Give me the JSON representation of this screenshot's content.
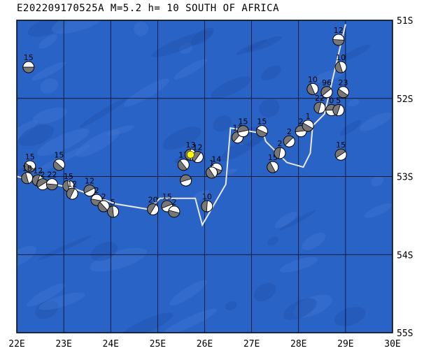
{
  "title": "E202209170525A M=5.2 h= 10 SOUTH OF AFRICA",
  "map": {
    "lon_range": [
      22,
      30
    ],
    "lat_range": [
      -55,
      -51
    ],
    "lon_ticks": [
      "22E",
      "23E",
      "24E",
      "25E",
      "26E",
      "27E",
      "28E",
      "29E",
      "30E"
    ],
    "lat_ticks": [
      "51S",
      "52S",
      "53S",
      "54S",
      "55S"
    ],
    "colors": {
      "ocean": "#2a63c6",
      "ocean_light": "#3e76d2",
      "ocean_dark": "#1f52ae",
      "grid": "#000000",
      "plate_boundary": "#e8e8e8",
      "highlight": "#ffff00"
    },
    "plate_boundary": [
      [
        22.0,
        -53.0
      ],
      [
        23.2,
        -53.15
      ],
      [
        24.1,
        -53.35
      ],
      [
        24.8,
        -53.42
      ],
      [
        25.05,
        -53.28
      ],
      [
        25.8,
        -53.28
      ],
      [
        25.95,
        -53.62
      ],
      [
        26.45,
        -53.1
      ],
      [
        26.55,
        -52.38
      ],
      [
        27.25,
        -52.45
      ],
      [
        27.3,
        -52.55
      ],
      [
        27.75,
        -52.82
      ],
      [
        28.1,
        -52.88
      ],
      [
        28.25,
        -52.7
      ],
      [
        28.3,
        -52.35
      ],
      [
        28.55,
        -52.2
      ],
      [
        29.0,
        -51.05
      ]
    ],
    "epicenter": {
      "lon": 25.7,
      "lat": -52.72
    },
    "events": [
      {
        "lon": 22.25,
        "lat": -51.6,
        "label": "15"
      },
      {
        "lon": 22.28,
        "lat": -52.87,
        "label": "15"
      },
      {
        "lon": 22.22,
        "lat": -53.02,
        "label": "18"
      },
      {
        "lon": 22.45,
        "lat": -53.05,
        "label": "12"
      },
      {
        "lon": 22.55,
        "lat": -53.1,
        "label": "2"
      },
      {
        "lon": 22.75,
        "lat": -53.1,
        "label": "22"
      },
      {
        "lon": 22.9,
        "lat": -52.85,
        "label": "15"
      },
      {
        "lon": 23.1,
        "lat": -53.12,
        "label": "15"
      },
      {
        "lon": 23.18,
        "lat": -53.22,
        "label": "12"
      },
      {
        "lon": 23.55,
        "lat": -53.18,
        "label": "12"
      },
      {
        "lon": 23.7,
        "lat": -53.3,
        "label": "2"
      },
      {
        "lon": 23.85,
        "lat": -53.38,
        "label": "2"
      },
      {
        "lon": 24.05,
        "lat": -53.45,
        "label": "5"
      },
      {
        "lon": 24.9,
        "lat": -53.42,
        "label": "20"
      },
      {
        "lon": 25.2,
        "lat": -53.38,
        "label": "15"
      },
      {
        "lon": 25.35,
        "lat": -53.45,
        "label": "2"
      },
      {
        "lon": 25.55,
        "lat": -52.85,
        "label": "17"
      },
      {
        "lon": 25.7,
        "lat": -52.72,
        "label": "13"
      },
      {
        "lon": 25.85,
        "lat": -52.75,
        "label": "12"
      },
      {
        "lon": 25.6,
        "lat": -53.05,
        "label": ""
      },
      {
        "lon": 26.25,
        "lat": -52.9,
        "label": "14"
      },
      {
        "lon": 26.15,
        "lat": -52.95,
        "label": "1"
      },
      {
        "lon": 26.05,
        "lat": -53.38,
        "label": "10"
      },
      {
        "lon": 26.7,
        "lat": -52.5,
        "label": "13"
      },
      {
        "lon": 26.82,
        "lat": -52.42,
        "label": "15"
      },
      {
        "lon": 27.22,
        "lat": -52.42,
        "label": "15"
      },
      {
        "lon": 27.45,
        "lat": -52.88,
        "label": "15"
      },
      {
        "lon": 27.6,
        "lat": -52.7,
        "label": "2"
      },
      {
        "lon": 27.8,
        "lat": -52.55,
        "label": "2"
      },
      {
        "lon": 28.05,
        "lat": -52.42,
        "label": "2"
      },
      {
        "lon": 28.2,
        "lat": -52.35,
        "label": "1"
      },
      {
        "lon": 28.3,
        "lat": -51.88,
        "label": "10"
      },
      {
        "lon": 28.45,
        "lat": -52.12,
        "label": "22"
      },
      {
        "lon": 28.6,
        "lat": -51.92,
        "label": "96"
      },
      {
        "lon": 28.7,
        "lat": -52.15,
        "label": "0"
      },
      {
        "lon": 28.95,
        "lat": -51.92,
        "label": "23"
      },
      {
        "lon": 28.9,
        "lat": -51.6,
        "label": "10"
      },
      {
        "lon": 28.85,
        "lat": -52.15,
        "label": "5"
      },
      {
        "lon": 28.9,
        "lat": -52.72,
        "label": "15"
      },
      {
        "lon": 28.85,
        "lat": -51.25,
        "label": "12"
      }
    ]
  }
}
